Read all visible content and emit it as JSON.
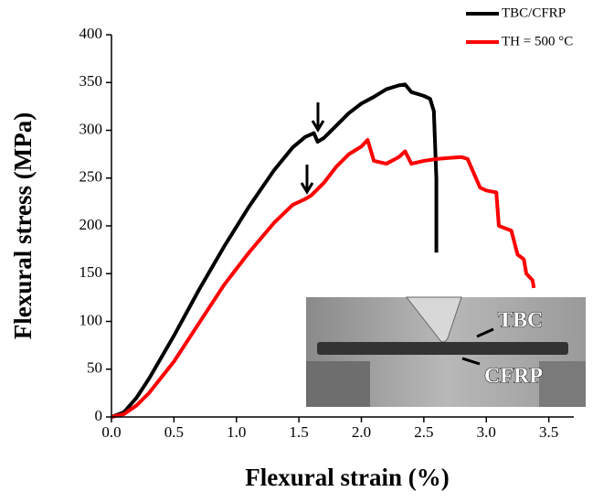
{
  "chart_data": {
    "type": "line",
    "xlabel": "Flexural strain (%)",
    "ylabel": "Flexural stress (MPa)",
    "xlim": [
      0,
      3.7
    ],
    "ylim": [
      0,
      400
    ],
    "xticks": [
      {
        "value": 0,
        "label": "0.0"
      },
      {
        "value": 0.5,
        "label": "0.5"
      },
      {
        "value": 1,
        "label": "1.0"
      },
      {
        "value": 1.5,
        "label": "1.5"
      },
      {
        "value": 2,
        "label": "2.0"
      },
      {
        "value": 2.5,
        "label": "2.5"
      },
      {
        "value": 3,
        "label": "3.0"
      },
      {
        "value": 3.5,
        "label": "3.5"
      }
    ],
    "yticks": [
      0,
      50,
      100,
      150,
      200,
      250,
      300,
      350,
      400
    ],
    "annotations": [
      "TBC",
      "CFRP"
    ],
    "series": [
      {
        "name": "TBC/CFRP",
        "color": "#000000",
        "x": [
          0,
          0.1,
          0.2,
          0.3,
          0.5,
          0.7,
          0.9,
          1.1,
          1.3,
          1.45,
          1.55,
          1.62,
          1.65,
          1.7,
          1.8,
          1.9,
          2.0,
          2.1,
          2.2,
          2.3,
          2.35,
          2.4,
          2.5,
          2.55,
          2.58,
          2.6,
          2.6
        ],
        "values": [
          0,
          5,
          20,
          40,
          85,
          133,
          178,
          220,
          258,
          282,
          293,
          297,
          288,
          292,
          305,
          318,
          328,
          335,
          343,
          347,
          348,
          340,
          336,
          333,
          320,
          250,
          172
        ]
      },
      {
        "name": "TH = 500 °C",
        "color": "#ff0000",
        "x": [
          0,
          0.1,
          0.2,
          0.3,
          0.5,
          0.7,
          0.9,
          1.1,
          1.3,
          1.45,
          1.55,
          1.6,
          1.7,
          1.8,
          1.9,
          2.0,
          2.05,
          2.1,
          2.2,
          2.3,
          2.35,
          2.4,
          2.5,
          2.6,
          2.7,
          2.8,
          2.85,
          2.9,
          2.95,
          3.0,
          3.08,
          3.1,
          3.2,
          3.25,
          3.3,
          3.32,
          3.37,
          3.38
        ],
        "values": [
          0,
          3,
          12,
          25,
          58,
          98,
          138,
          172,
          203,
          222,
          228,
          232,
          245,
          262,
          275,
          283,
          290,
          268,
          265,
          272,
          278,
          265,
          268,
          270,
          271,
          272,
          270,
          255,
          240,
          237,
          235,
          200,
          195,
          170,
          165,
          150,
          143,
          135
        ]
      }
    ]
  }
}
